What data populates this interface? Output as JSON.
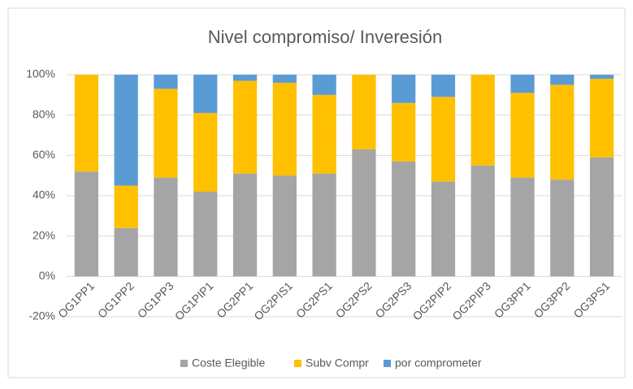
{
  "chart_data": {
    "type": "stacked_bar",
    "title": "Nivel compromiso/ Inveresión",
    "categories": [
      "OG1PP1",
      "OG1PP2",
      "OG1PP3",
      "OG1PIP1",
      "OG2PP1",
      "OG2PIS1",
      "OG2PS1",
      "OG2PS2",
      "OG2PS3",
      "OG2PIP2",
      "OG2PIP3",
      "OG3PP1",
      "OG3PP2",
      "OG3PS1"
    ],
    "series": [
      {
        "name": "Coste Elegible",
        "color": "#a5a5a5",
        "values": [
          52,
          24,
          49,
          42,
          51,
          50,
          51,
          63,
          57,
          47,
          55,
          49,
          48,
          59
        ]
      },
      {
        "name": "Subv Compr",
        "color": "#ffc000",
        "values": [
          48,
          21,
          44,
          39,
          46,
          46,
          39,
          37,
          29,
          42,
          45,
          42,
          47,
          39
        ]
      },
      {
        "name": "por comprometer",
        "color": "#5b9bd5",
        "values": [
          0,
          55,
          7,
          19,
          3,
          4,
          10,
          0,
          14,
          11,
          0,
          9,
          5,
          2
        ]
      }
    ],
    "ylim": [
      -20,
      100
    ],
    "yticks": [
      {
        "value": -20,
        "label": "-20%"
      },
      {
        "value": 0,
        "label": "0%"
      },
      {
        "value": 20,
        "label": "20%"
      },
      {
        "value": 40,
        "label": "40%"
      },
      {
        "value": 60,
        "label": "60%"
      },
      {
        "value": 80,
        "label": "80%"
      },
      {
        "value": 100,
        "label": "100%"
      }
    ],
    "grid": true,
    "legend": "bottom"
  }
}
